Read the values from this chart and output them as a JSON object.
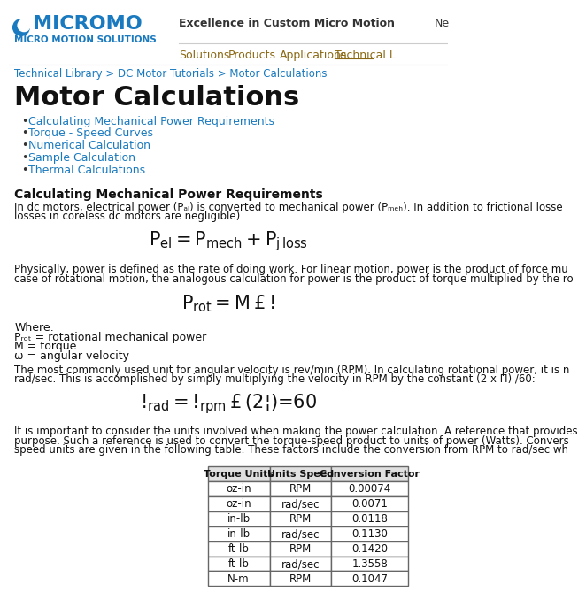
{
  "bg_color": "#ffffff",
  "blue_color": "#1a7abf",
  "logo_text": "MICROMO",
  "logo_sub": "MICRO MOTION SOLUTIONS",
  "header_tagline": "Excellence in Custom Micro Motion",
  "header_extra": "Ne",
  "nav_items": [
    "Solutions",
    "Products",
    "Applications",
    "Technical L"
  ],
  "breadcrumb": "Technical Library > DC Motor Tutorials > Motor Calculations",
  "page_title": "Motor Calculations",
  "bullet_items": [
    "Calculating Mechanical Power Requirements",
    "Torque - Speed Curves",
    "Numerical Calculation",
    "Sample Calculation",
    "Thermal Calculations"
  ],
  "section_title": "Calculating Mechanical Power Requirements",
  "body_text1": "In dc motors, electrical power (Pₐₗ) is converted to mechanical power (Pₘₑ⁣ₕ). In addition to frictional losse",
  "body_text1b": "losses in coreless dc motors are negligible).",
  "body_text2": "Physically, power is defined as the rate of doing work. For linear motion, power is the product of force mu",
  "body_text2b": "case of rotational motion, the analogous calculation for power is the product of torque multiplied by the ro",
  "where_label": "Where:",
  "where_items": [
    "Pᵣₒₜ = rotational mechanical power",
    "M = torque",
    "ω = angular velocity"
  ],
  "body_text3": "The most commonly used unit for angular velocity is rev/min (RPM). In calculating rotational power, it is n",
  "body_text3b": "rad/sec. This is accomplished by simply multiplying the velocity in RPM by the constant (2 x Π) /60:",
  "body_text4": "It is important to consider the units involved when making the power calculation. A reference that provides",
  "body_text4b": "purpose. Such a reference is used to convert the torque-speed product to units of power (Watts). Convers",
  "body_text4c": "speed units are given in the following table. These factors include the conversion from RPM to rad/sec wh",
  "table_headers": [
    "Torque Units",
    "Units Speed",
    "Conversion Factor"
  ],
  "table_data": [
    [
      "oz-in",
      "RPM",
      "0.00074"
    ],
    [
      "oz-in",
      "rad/sec",
      "0.0071"
    ],
    [
      "in-lb",
      "RPM",
      "0.0118"
    ],
    [
      "in-lb",
      "rad/sec",
      "0.1130"
    ],
    [
      "ft-lb",
      "RPM",
      "0.1420"
    ],
    [
      "ft-lb",
      "rad/sec",
      "1.3558"
    ],
    [
      "N-m",
      "RPM",
      "0.1047"
    ]
  ],
  "nav_color": "#8b6914",
  "text_color": "#111111",
  "sep_color": "#cccccc"
}
